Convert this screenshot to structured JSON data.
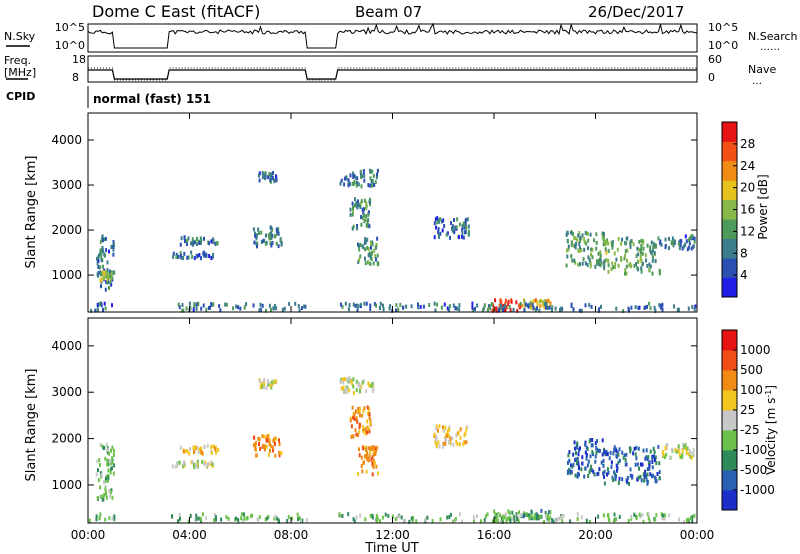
{
  "header": {
    "title": "Dome C East (fitACF)",
    "beam": "Beam 07",
    "date": "26/Dec/2017"
  },
  "status_panels": {
    "nsky": {
      "label": "N.Sky",
      "left_ticks": [
        "10^5",
        "10^0"
      ],
      "right_ticks": [
        "10^5",
        "10^0"
      ],
      "right_label": "N.Search"
    },
    "freq": {
      "label_line1": "Freq.",
      "label_line2": "[MHz]",
      "left_ticks": [
        "18",
        "8"
      ],
      "right_ticks": [
        "60",
        "0"
      ],
      "right_label": "Nave"
    },
    "cpid": {
      "label": "CPID",
      "text": "normal (fast) 151"
    }
  },
  "chart_data": [
    {
      "type": "heatmap",
      "name": "power",
      "xlabel": "",
      "ylabel": "Slant Range [km]",
      "x_ticks": [
        "00:00",
        "04:00",
        "08:00",
        "12:00",
        "16:00",
        "20:00",
        "00:00"
      ],
      "x_range_hours": [
        0,
        24
      ],
      "y_ticks": [
        1000,
        2000,
        3000,
        4000
      ],
      "ylim": [
        180,
        4600
      ],
      "colorbar": {
        "label": "Power [dB]",
        "ticks": [
          4,
          8,
          12,
          16,
          20,
          24,
          28
        ],
        "range": [
          0,
          32
        ],
        "colors": [
          "#1f1fe6",
          "#2b50b4",
          "#3c7d8c",
          "#4e9a5a",
          "#86b84a",
          "#e6c21e",
          "#f08c14",
          "#f25014",
          "#e61414"
        ]
      },
      "blobs": [
        {
          "t": [
            0.3,
            1.0
          ],
          "r": [
            650,
            1850
          ],
          "v": 8
        },
        {
          "t": [
            0.45,
            0.9
          ],
          "r": [
            850,
            1050
          ],
          "v": 17
        },
        {
          "t": [
            3.3,
            4.9
          ],
          "r": [
            1350,
            1480
          ],
          "v": 7
        },
        {
          "t": [
            3.6,
            5.1
          ],
          "r": [
            1650,
            1820
          ],
          "v": 8
        },
        {
          "t": [
            6.5,
            7.6
          ],
          "r": [
            1600,
            2050
          ],
          "v": 9
        },
        {
          "t": [
            6.7,
            7.4
          ],
          "r": [
            3050,
            3250
          ],
          "v": 8
        },
        {
          "t": [
            9.9,
            11.4
          ],
          "r": [
            2950,
            3300
          ],
          "v": 9
        },
        {
          "t": [
            10.3,
            11.1
          ],
          "r": [
            2000,
            2700
          ],
          "v": 10
        },
        {
          "t": [
            10.6,
            11.4
          ],
          "r": [
            1200,
            1800
          ],
          "v": 11
        },
        {
          "t": [
            13.6,
            15.0
          ],
          "r": [
            1800,
            2250
          ],
          "v": 7
        },
        {
          "t": [
            15.9,
            17.0
          ],
          "r": [
            180,
            420
          ],
          "v": 30
        },
        {
          "t": [
            17.0,
            18.2
          ],
          "r": [
            250,
            420
          ],
          "v": 20
        },
        {
          "t": [
            18.8,
            20.3
          ],
          "r": [
            1150,
            1950
          ],
          "v": 12
        },
        {
          "t": [
            20.3,
            22.5
          ],
          "r": [
            1000,
            1800
          ],
          "v": 13
        },
        {
          "t": [
            22.5,
            23.9
          ],
          "r": [
            1550,
            1850
          ],
          "v": 8
        },
        {
          "t": [
            0.0,
            24.0
          ],
          "r": [
            180,
            350
          ],
          "v": 8
        }
      ]
    },
    {
      "type": "heatmap",
      "name": "velocity",
      "xlabel": "Time UT",
      "ylabel": "Slant Range [km]",
      "x_ticks": [
        "00:00",
        "04:00",
        "08:00",
        "12:00",
        "16:00",
        "20:00",
        "00:00"
      ],
      "x_range_hours": [
        0,
        24
      ],
      "y_ticks": [
        1000,
        2000,
        3000,
        4000
      ],
      "ylim": [
        180,
        4600
      ],
      "colorbar": {
        "label": "Velocity [m s^-1]",
        "ticks": [
          "1000",
          "500",
          "100",
          "25",
          "-25",
          "-100",
          "-500",
          "-1000"
        ],
        "colors": [
          "#1a2ec8",
          "#2a60b4",
          "#2f8a5a",
          "#6cc24a",
          "#c8c8c8",
          "#f2c41e",
          "#f08c14",
          "#f04e14",
          "#e61414"
        ]
      },
      "blobs": [
        {
          "t": [
            0.3,
            1.0
          ],
          "r": [
            650,
            1850
          ],
          "c": 3
        },
        {
          "t": [
            3.3,
            4.9
          ],
          "r": [
            1350,
            1480
          ],
          "c": 4
        },
        {
          "t": [
            3.6,
            5.1
          ],
          "r": [
            1650,
            1820
          ],
          "c": 5
        },
        {
          "t": [
            6.5,
            7.6
          ],
          "r": [
            1600,
            2050
          ],
          "c": 6
        },
        {
          "t": [
            6.7,
            7.4
          ],
          "r": [
            3050,
            3250
          ],
          "c": 4
        },
        {
          "t": [
            9.9,
            11.4
          ],
          "r": [
            2950,
            3300
          ],
          "c": 4
        },
        {
          "t": [
            10.3,
            11.1
          ],
          "r": [
            2000,
            2700
          ],
          "c": 6
        },
        {
          "t": [
            10.6,
            11.4
          ],
          "r": [
            1200,
            1800
          ],
          "c": 6
        },
        {
          "t": [
            13.6,
            15.0
          ],
          "r": [
            1800,
            2250
          ],
          "c": 5
        },
        {
          "t": [
            15.9,
            17.0
          ],
          "r": [
            180,
            420
          ],
          "c": 3
        },
        {
          "t": [
            17.0,
            18.2
          ],
          "r": [
            250,
            420
          ],
          "c": 2
        },
        {
          "t": [
            18.8,
            20.3
          ],
          "r": [
            1150,
            1950
          ],
          "c": 1
        },
        {
          "t": [
            20.3,
            22.5
          ],
          "r": [
            1000,
            1800
          ],
          "c": 1
        },
        {
          "t": [
            22.5,
            23.9
          ],
          "r": [
            1550,
            1850
          ],
          "c": 4
        },
        {
          "t": [
            0.0,
            24.0
          ],
          "r": [
            180,
            350
          ],
          "c": 3
        }
      ]
    }
  ],
  "data_gaps_hours": [
    [
      1.0,
      3.2
    ],
    [
      8.6,
      9.8
    ]
  ]
}
